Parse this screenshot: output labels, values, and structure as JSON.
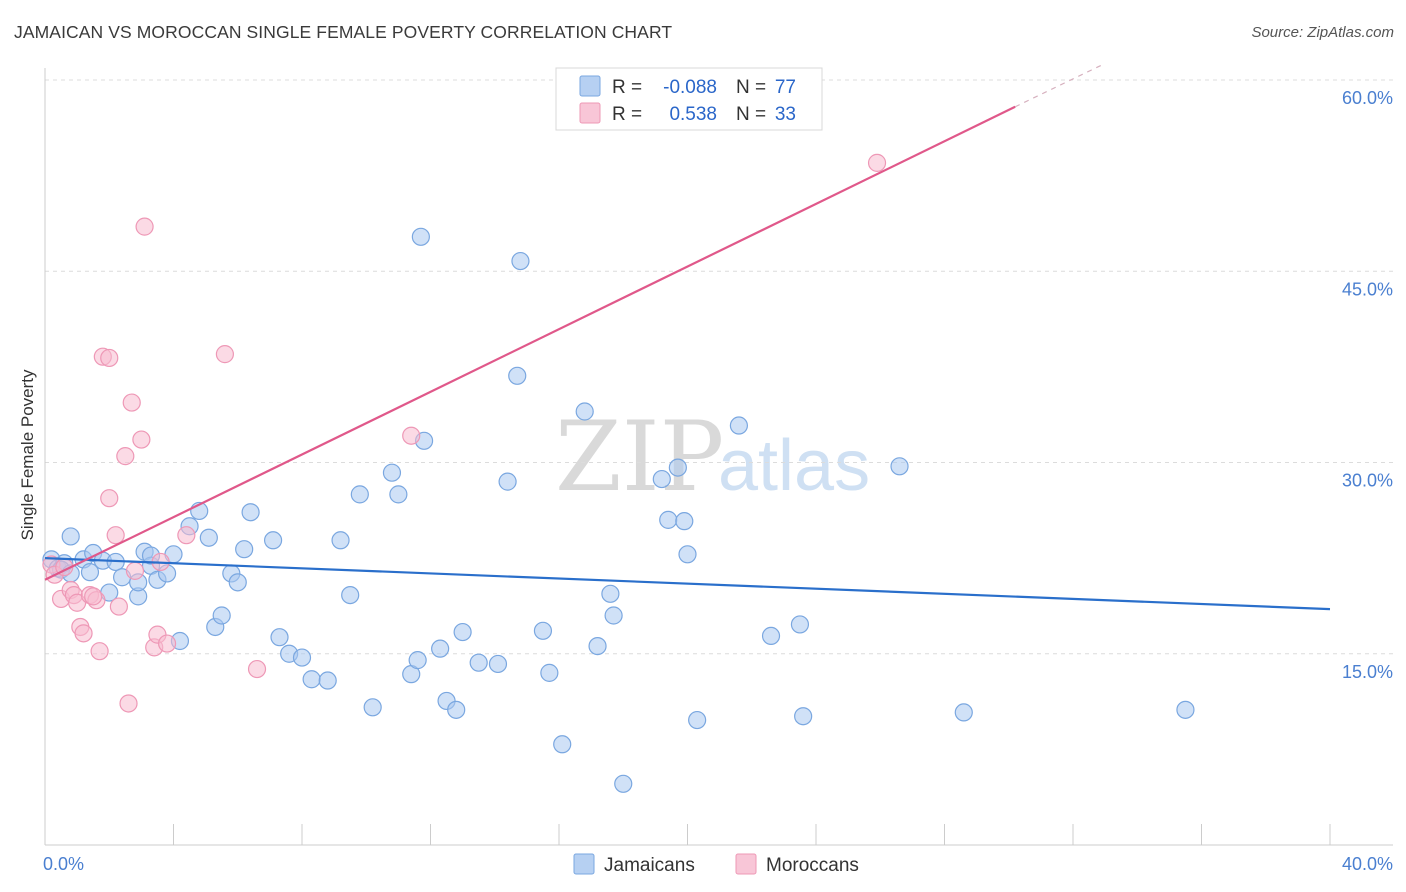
{
  "title": "JAMAICAN VS MOROCCAN SINGLE FEMALE POVERTY CORRELATION CHART",
  "source": "Source: ZipAtlas.com",
  "watermark": {
    "zip": "ZIP",
    "atlas": "atlas"
  },
  "legend": {
    "rows": [
      {
        "r_label": "R =",
        "r_value": "-0.088",
        "n_label": "N =",
        "n_value": "77",
        "color": "#a9c8f0"
      },
      {
        "r_label": "R =",
        "r_value": "0.538",
        "n_label": "N =",
        "n_value": "33",
        "color": "#f7bcd0"
      }
    ]
  },
  "bottom_legend": [
    "Jamaicans",
    "Moroccans"
  ],
  "chart_data": {
    "type": "scatter",
    "xlabel": "",
    "ylabel": "Single Female Poverty",
    "xlim": [
      0,
      40
    ],
    "ylim": [
      0,
      60
    ],
    "x_tick_labels": [
      "0.0%",
      "40.0%"
    ],
    "y_ticks": [
      15,
      30,
      45,
      60
    ],
    "y_tick_labels": [
      "15.0%",
      "30.0%",
      "45.0%",
      "60.0%"
    ],
    "grid": "horizontal-dashed",
    "series": [
      {
        "name": "Jamaicans",
        "color": "#a9c8f0",
        "stroke": "#7aa7e0",
        "line_color": "#2a6fcb",
        "trend": {
          "x": [
            0,
            40
          ],
          "y": [
            22.5,
            18.5
          ]
        },
        "points": [
          [
            0.2,
            22.4
          ],
          [
            0.4,
            21.7
          ],
          [
            0.6,
            22.1
          ],
          [
            0.8,
            24.2
          ],
          [
            0.5,
            21.6
          ],
          [
            1.2,
            22.4
          ],
          [
            1.5,
            22.9
          ],
          [
            1.8,
            22.3
          ],
          [
            2.2,
            22.2
          ],
          [
            2.4,
            21.0
          ],
          [
            2.0,
            19.8
          ],
          [
            2.9,
            19.5
          ],
          [
            3.1,
            23.0
          ],
          [
            3.3,
            21.9
          ],
          [
            3.5,
            20.8
          ],
          [
            3.8,
            21.3
          ],
          [
            4.0,
            22.8
          ],
          [
            4.2,
            16.0
          ],
          [
            4.5,
            25.0
          ],
          [
            4.8,
            26.2
          ],
          [
            5.1,
            24.1
          ],
          [
            5.3,
            17.1
          ],
          [
            5.5,
            18.0
          ],
          [
            5.8,
            21.3
          ],
          [
            6.0,
            20.6
          ],
          [
            6.2,
            23.2
          ],
          [
            6.4,
            26.1
          ],
          [
            7.1,
            23.9
          ],
          [
            7.3,
            16.3
          ],
          [
            7.6,
            15.0
          ],
          [
            8.0,
            14.7
          ],
          [
            8.3,
            13.0
          ],
          [
            8.8,
            12.9
          ],
          [
            9.2,
            23.9
          ],
          [
            9.5,
            19.6
          ],
          [
            9.8,
            27.5
          ],
          [
            10.2,
            10.8
          ],
          [
            10.8,
            29.2
          ],
          [
            11.0,
            27.5
          ],
          [
            11.4,
            13.4
          ],
          [
            11.6,
            14.5
          ],
          [
            11.8,
            31.7
          ],
          [
            12.3,
            15.4
          ],
          [
            12.5,
            11.3
          ],
          [
            12.8,
            10.6
          ],
          [
            13.0,
            16.7
          ],
          [
            13.5,
            14.3
          ],
          [
            14.1,
            14.2
          ],
          [
            14.4,
            28.5
          ],
          [
            14.7,
            36.8
          ],
          [
            11.7,
            47.7
          ],
          [
            14.8,
            45.8
          ],
          [
            15.5,
            16.8
          ],
          [
            15.7,
            13.5
          ],
          [
            16.1,
            7.9
          ],
          [
            16.8,
            34.0
          ],
          [
            17.2,
            15.6
          ],
          [
            18.0,
            4.8
          ],
          [
            17.6,
            19.7
          ],
          [
            17.7,
            18.0
          ],
          [
            19.2,
            28.7
          ],
          [
            19.4,
            25.5
          ],
          [
            19.7,
            29.6
          ],
          [
            19.9,
            25.4
          ],
          [
            20.0,
            22.8
          ],
          [
            20.3,
            9.8
          ],
          [
            21.6,
            32.9
          ],
          [
            22.6,
            16.4
          ],
          [
            23.5,
            17.3
          ],
          [
            23.6,
            10.1
          ],
          [
            26.6,
            29.7
          ],
          [
            28.6,
            10.4
          ],
          [
            35.5,
            10.6
          ],
          [
            0.8,
            21.3
          ],
          [
            1.4,
            21.4
          ],
          [
            3.3,
            22.7
          ],
          [
            2.9,
            20.6
          ]
        ]
      },
      {
        "name": "Moroccans",
        "color": "#f7bcd0",
        "stroke": "#ee98b6",
        "line_color": "#e0588a",
        "trend": {
          "x": [
            0,
            30.2
          ],
          "y": [
            20.8,
            57.9
          ]
        },
        "trend_dashed": {
          "x": [
            30.2,
            33.0
          ],
          "y": [
            57.9,
            61.3
          ]
        },
        "points": [
          [
            0.2,
            22.0
          ],
          [
            0.3,
            21.2
          ],
          [
            0.5,
            19.3
          ],
          [
            0.6,
            21.8
          ],
          [
            0.8,
            20.0
          ],
          [
            0.9,
            19.6
          ],
          [
            1.0,
            19.0
          ],
          [
            1.1,
            17.1
          ],
          [
            1.2,
            16.6
          ],
          [
            1.4,
            19.6
          ],
          [
            1.6,
            19.2
          ],
          [
            1.7,
            15.2
          ],
          [
            1.8,
            38.3
          ],
          [
            2.0,
            27.2
          ],
          [
            2.0,
            38.2
          ],
          [
            2.2,
            24.3
          ],
          [
            2.3,
            18.7
          ],
          [
            2.5,
            30.5
          ],
          [
            2.6,
            11.1
          ],
          [
            2.7,
            34.7
          ],
          [
            2.8,
            21.5
          ],
          [
            3.0,
            31.8
          ],
          [
            3.1,
            48.5
          ],
          [
            3.4,
            15.5
          ],
          [
            3.5,
            16.5
          ],
          [
            3.6,
            22.2
          ],
          [
            3.8,
            15.8
          ],
          [
            4.4,
            24.3
          ],
          [
            5.6,
            38.5
          ],
          [
            6.6,
            13.8
          ],
          [
            11.4,
            32.1
          ],
          [
            25.9,
            53.5
          ],
          [
            1.5,
            19.5
          ]
        ]
      }
    ]
  }
}
